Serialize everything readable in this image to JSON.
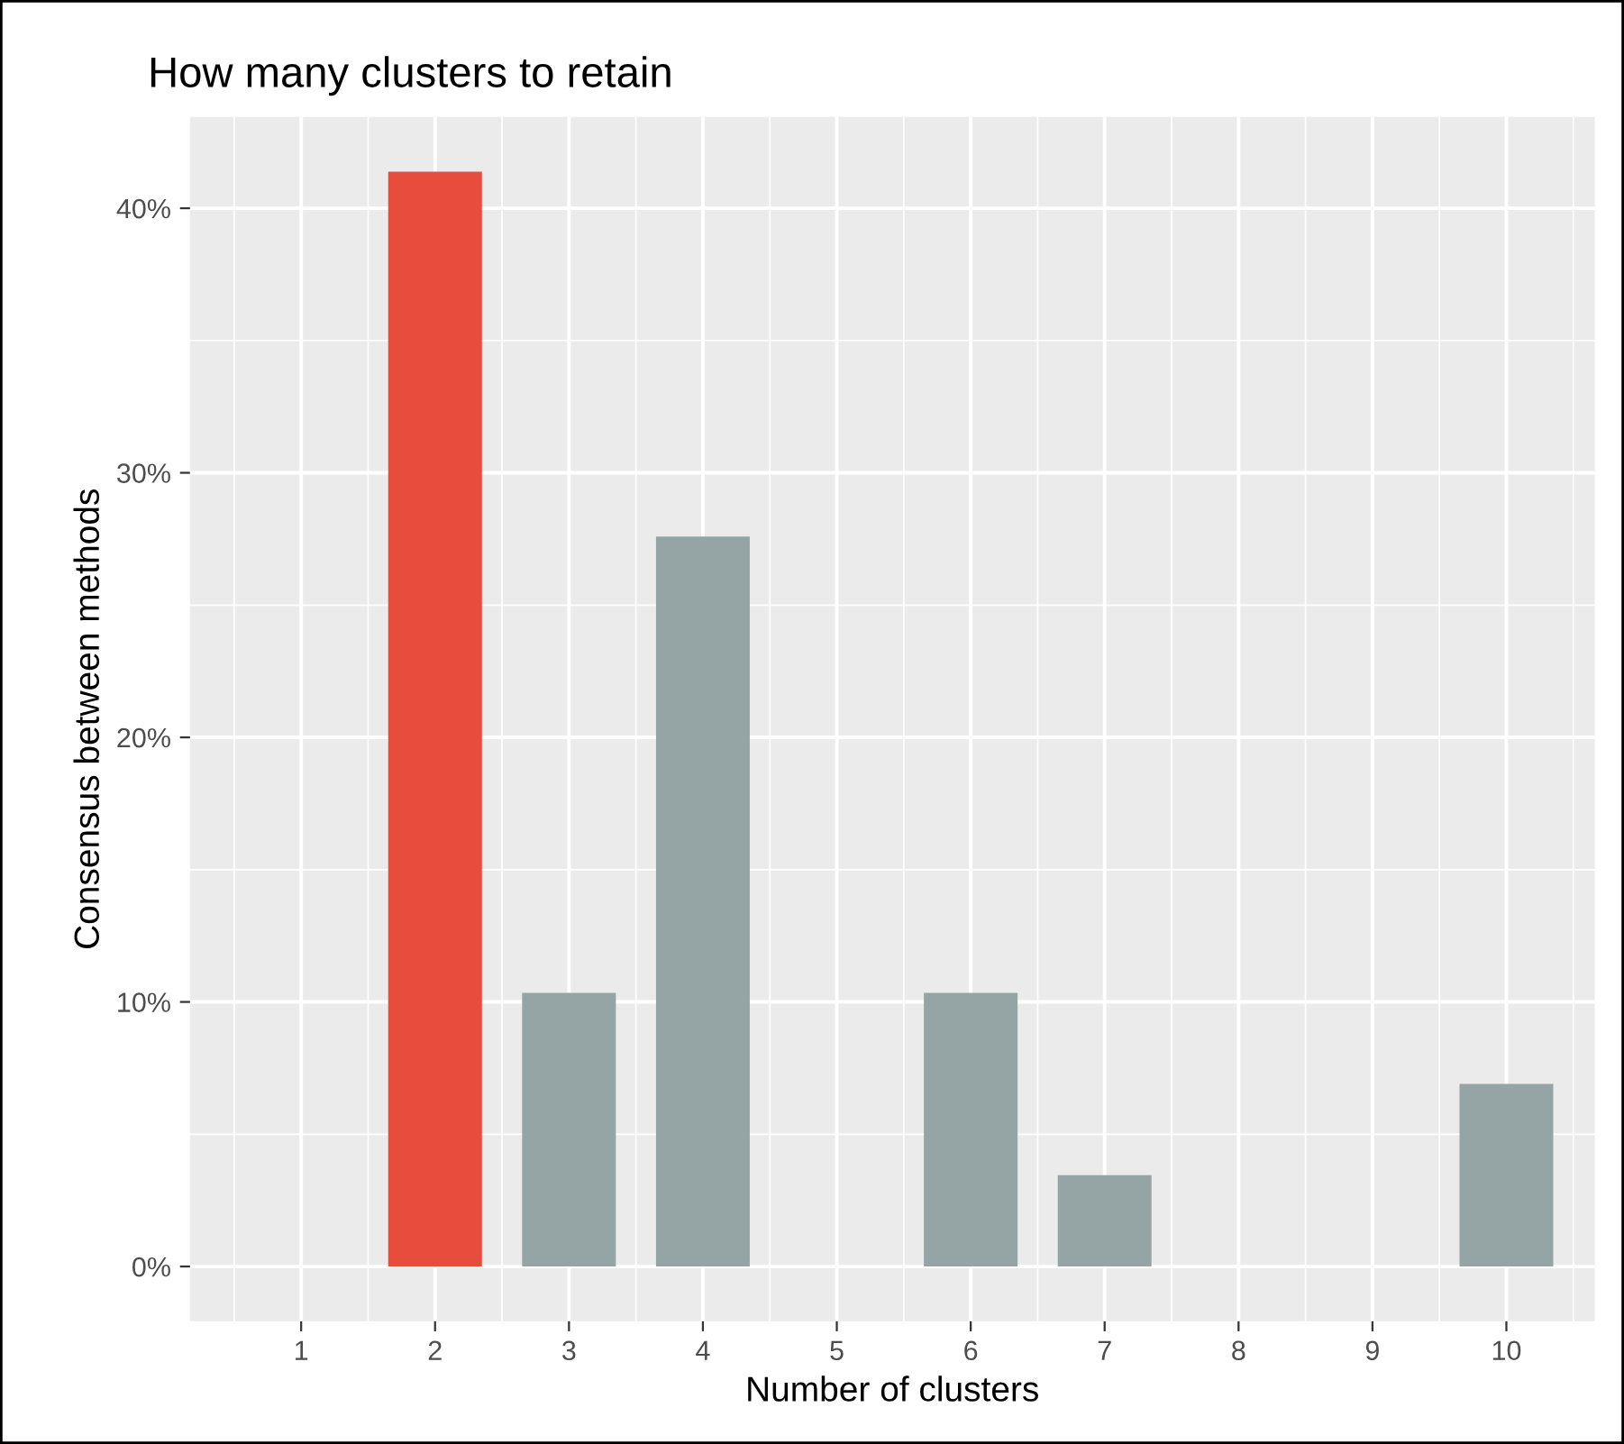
{
  "chart_data": {
    "type": "bar",
    "title": "How many clusters to retain",
    "xlabel": "Number of clusters",
    "ylabel": "Consensus between methods",
    "x": [
      1,
      2,
      3,
      4,
      5,
      6,
      7,
      8,
      9,
      10
    ],
    "values": [
      0,
      41.38,
      10.34,
      27.59,
      0,
      10.34,
      3.45,
      0,
      0,
      6.9
    ],
    "colors": [
      "#95a5a6",
      "#e74c3c",
      "#95a5a6",
      "#95a5a6",
      "#95a5a6",
      "#95a5a6",
      "#95a5a6",
      "#95a5a6",
      "#95a5a6",
      "#95a5a6"
    ],
    "xlim": [
      0.17,
      10.66
    ],
    "xticks": [
      1,
      2,
      3,
      4,
      5,
      6,
      7,
      8,
      9,
      10
    ],
    "ylim": [
      -2.07,
      43.45
    ],
    "yticks": [
      {
        "value": 0,
        "label": "0%"
      },
      {
        "value": 10,
        "label": "10%"
      },
      {
        "value": 20,
        "label": "20%"
      },
      {
        "value": 30,
        "label": "30%"
      },
      {
        "value": 40,
        "label": "40%"
      }
    ],
    "grid": true
  }
}
